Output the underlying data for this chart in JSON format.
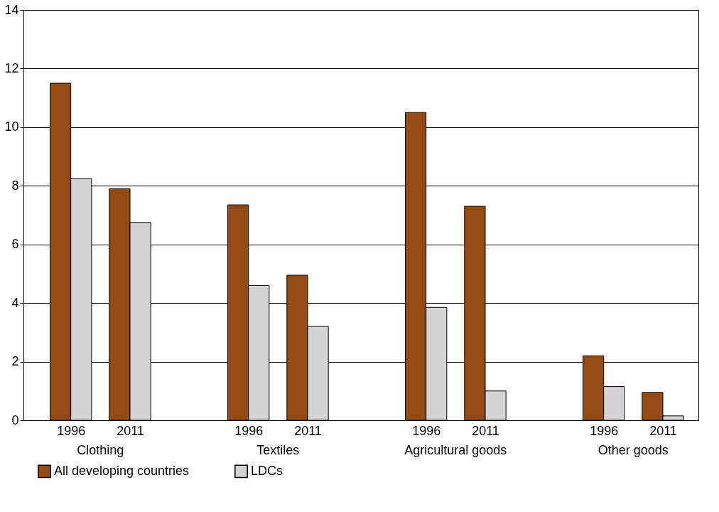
{
  "chart_data": {
    "type": "bar",
    "categories": [
      "1996",
      "2011",
      "1996",
      "2011",
      "1996",
      "2011",
      "1996",
      "2011"
    ],
    "series": [
      {
        "name": "All developing countries",
        "color": "#954a12",
        "values": [
          11.5,
          7.9,
          7.35,
          4.95,
          10.5,
          7.3,
          2.2,
          0.95
        ]
      },
      {
        "name": "LDCs",
        "color": "#d3d3d5",
        "values": [
          8.25,
          6.75,
          4.6,
          3.2,
          3.85,
          1.0,
          1.15,
          0.15
        ]
      }
    ],
    "annotations": [
      "Clothing",
      "Textiles",
      "Agricultural goods",
      "Other goods"
    ],
    "ylim": [
      0,
      14
    ],
    "yticks": [
      0,
      2,
      4,
      6,
      8,
      10,
      12,
      14
    ],
    "grid": "y",
    "legend": "bottom"
  }
}
